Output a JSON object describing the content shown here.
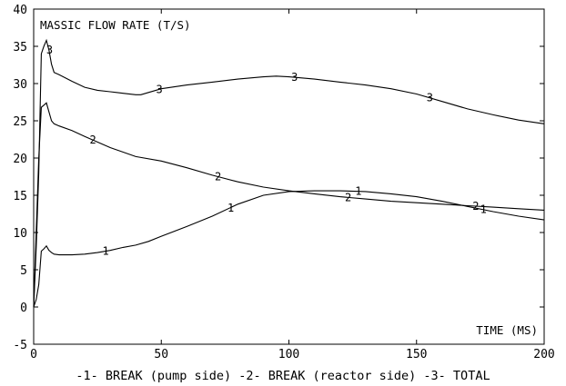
{
  "chart_data": {
    "type": "line",
    "inner_title": "MASSIC FLOW RATE (T/S)",
    "xlabel": "TIME (MS)",
    "legend_caption": "-1- BREAK (pump side) -2- BREAK (reactor side) -3- TOTAL",
    "xlim": [
      0,
      200
    ],
    "ylim": [
      -5,
      40
    ],
    "x_ticks": [
      0,
      50,
      100,
      150,
      200
    ],
    "y_ticks": [
      -5,
      0,
      5,
      10,
      15,
      20,
      25,
      30,
      35,
      40
    ],
    "grid": false,
    "series": [
      {
        "marker": "1",
        "x": [
          0,
          1,
          2,
          3,
          4,
          5,
          6,
          7,
          8,
          10,
          15,
          20,
          25,
          30,
          35,
          40,
          45,
          50,
          60,
          70,
          80,
          90,
          100,
          110,
          120,
          130,
          140,
          150,
          160,
          170,
          180,
          190,
          200
        ],
        "y": [
          0,
          1,
          3,
          7.5,
          7.8,
          8.2,
          7.6,
          7.3,
          7.1,
          7.0,
          7.0,
          7.1,
          7.3,
          7.6,
          8.0,
          8.3,
          8.8,
          9.5,
          10.8,
          12.2,
          13.8,
          15.0,
          15.5,
          15.6,
          15.6,
          15.5,
          15.2,
          14.8,
          14.2,
          13.5,
          12.8,
          12.2,
          11.7
        ],
        "marker_x": [
          28,
          77,
          127,
          176
        ]
      },
      {
        "marker": "2",
        "x": [
          0,
          1,
          2,
          3,
          4,
          5,
          6,
          7,
          8,
          10,
          15,
          20,
          30,
          40,
          50,
          60,
          70,
          80,
          90,
          100,
          110,
          120,
          130,
          140,
          150,
          160,
          170,
          180,
          190,
          200
        ],
        "y": [
          0,
          10,
          20,
          26.8,
          27.1,
          27.4,
          26.2,
          25,
          24.6,
          24.3,
          23.7,
          22.9,
          21.4,
          20.2,
          19.6,
          18.7,
          17.7,
          16.8,
          16.1,
          15.6,
          15.2,
          14.8,
          14.5,
          14.2,
          14.0,
          13.8,
          13.6,
          13.4,
          13.2,
          13.0
        ],
        "marker_x": [
          23,
          72,
          123,
          173
        ]
      },
      {
        "marker": "3",
        "x": [
          0,
          1,
          2,
          3,
          4,
          5,
          6,
          7,
          8,
          10,
          15,
          20,
          25,
          30,
          35,
          40,
          42,
          45,
          50,
          60,
          70,
          80,
          90,
          95,
          100,
          110,
          120,
          130,
          140,
          150,
          160,
          170,
          180,
          190,
          200
        ],
        "y": [
          0,
          8,
          18,
          34,
          35,
          35.8,
          34.5,
          32.6,
          31.5,
          31.2,
          30.3,
          29.5,
          29.1,
          28.9,
          28.7,
          28.5,
          28.5,
          28.8,
          29.3,
          29.8,
          30.2,
          30.6,
          30.9,
          31.0,
          30.9,
          30.6,
          30.2,
          29.8,
          29.3,
          28.6,
          27.6,
          26.6,
          25.8,
          25.1,
          24.6
        ],
        "marker_x": [
          6,
          49,
          102,
          155
        ]
      }
    ]
  }
}
